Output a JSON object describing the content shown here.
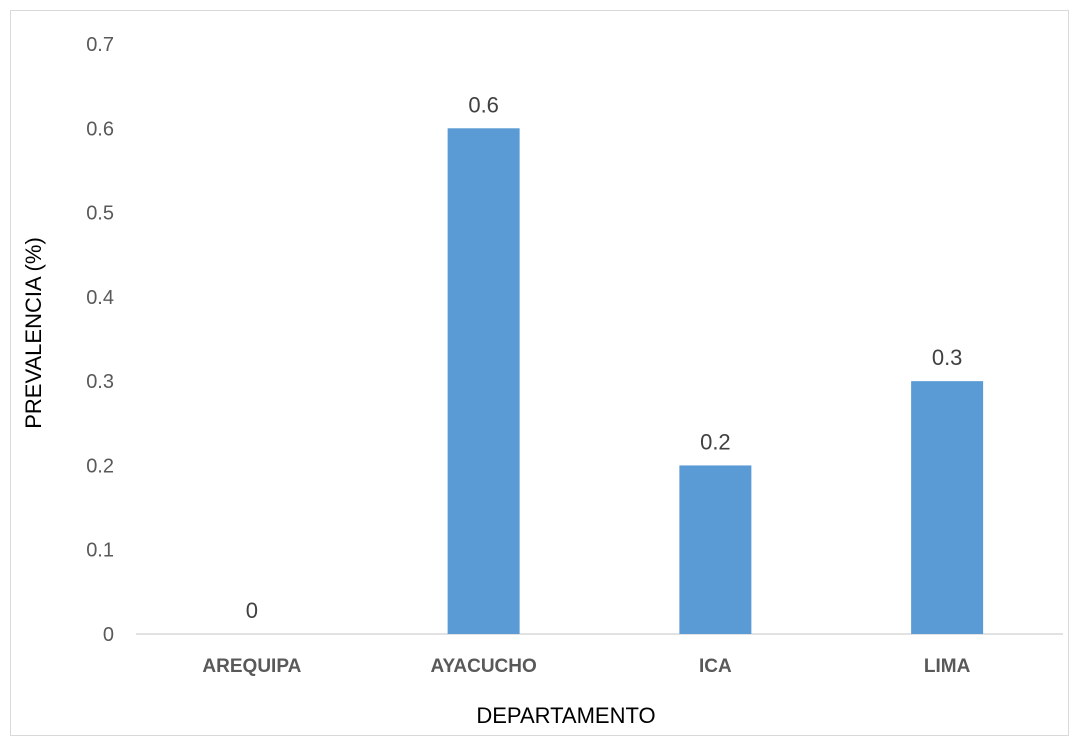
{
  "chart_data": {
    "type": "bar",
    "categories": [
      "AREQUIPA",
      "AYACUCHO",
      "ICA",
      "LIMA"
    ],
    "values": [
      0,
      0.6,
      0.2,
      0.3
    ],
    "data_labels": [
      "0",
      "0.6",
      "0.2",
      "0.3"
    ],
    "y_ticks": [
      "0",
      "0.1",
      "0.2",
      "0.3",
      "0.4",
      "0.5",
      "0.6",
      "0.7"
    ],
    "xlabel": "DEPARTAMENTO",
    "ylabel": "PREVALENCIA (%)",
    "ylim": [
      0,
      0.7
    ],
    "grid": false,
    "bar_color": "#5b9bd5",
    "legend": "none"
  }
}
